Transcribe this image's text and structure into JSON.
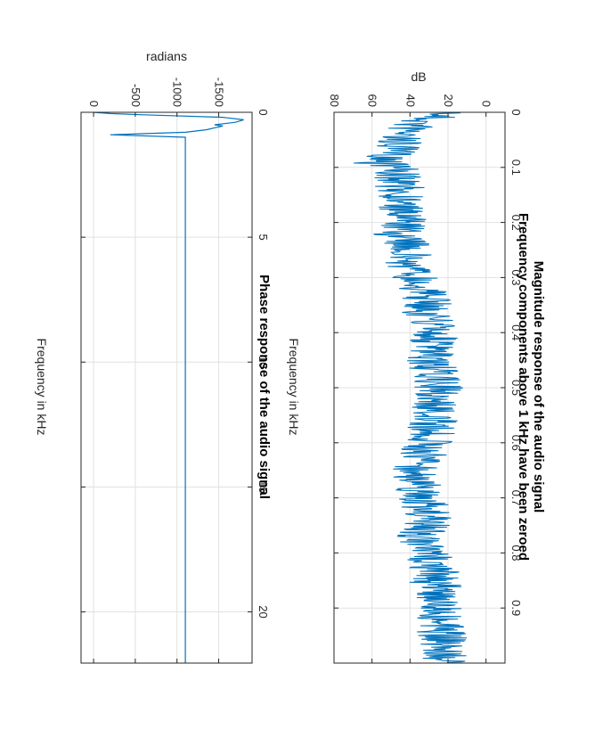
{
  "orientation": "rotated 90 degrees clockwise",
  "colors": {
    "line": "#0072bd",
    "grid": "#e1e1e1",
    "axis": "#262626",
    "background": "#ffffff"
  },
  "chart_data": [
    {
      "type": "line",
      "title": "Magnitude response of the audio signal",
      "subtitle": "Frequency components above 1 kHz have been zeroed",
      "xlabel": "Frequency in kHz",
      "ylabel": "dB",
      "xlim": [
        0,
        1
      ],
      "ylim": [
        -10,
        80
      ],
      "xticks": [
        0,
        0.1,
        0.2,
        0.3,
        0.4,
        0.5,
        0.6,
        0.7,
        0.8,
        0.9
      ],
      "xtick_labels": [
        "0",
        "0.1",
        "0.2",
        "0.3",
        "0.4",
        "0.5",
        "0.6",
        "0.7",
        "0.8",
        "0.9"
      ],
      "yticks": [
        0,
        20,
        40,
        60,
        80
      ],
      "ytick_labels": [
        "0",
        "20",
        "40",
        "60",
        "80"
      ],
      "grid": true,
      "series": [
        {
          "name": "magnitude",
          "description": "noisy spectrum, approximate envelope",
          "x": [
            0.0,
            0.02,
            0.05,
            0.08,
            0.09,
            0.1,
            0.12,
            0.15,
            0.18,
            0.2,
            0.22,
            0.25,
            0.28,
            0.3,
            0.33,
            0.36,
            0.4,
            0.44,
            0.47,
            0.5,
            0.53,
            0.56,
            0.6,
            0.63,
            0.66,
            0.69,
            0.72,
            0.75,
            0.78,
            0.8,
            0.83,
            0.86,
            0.9,
            0.93,
            0.96,
            1.0
          ],
          "y": [
            20,
            38,
            46,
            50,
            52,
            48,
            47,
            44,
            46,
            42,
            47,
            40,
            42,
            36,
            32,
            30,
            27,
            30,
            28,
            25,
            27,
            28,
            30,
            34,
            38,
            35,
            32,
            30,
            37,
            31,
            27,
            25,
            23,
            25,
            22,
            24
          ]
        }
      ]
    },
    {
      "type": "line",
      "title": "Phase response of the audio signal",
      "xlabel": "Frequency in kHz",
      "ylabel": "radians",
      "xlim": [
        0,
        22.05
      ],
      "ylim": [
        -1900,
        150
      ],
      "xticks": [
        0,
        5,
        10,
        15,
        20
      ],
      "xtick_labels": [
        "0",
        "5",
        "10",
        "15",
        "20"
      ],
      "yticks": [
        0,
        -500,
        -1000,
        -1500
      ],
      "ytick_labels": [
        "0",
        "-500",
        "-1000",
        "-1500"
      ],
      "grid": true,
      "series": [
        {
          "name": "phase",
          "x": [
            0,
            0.05,
            0.1,
            0.2,
            0.3,
            0.4,
            0.5,
            0.55,
            0.6,
            0.7,
            0.8,
            0.9,
            1.0,
            22.05
          ],
          "y": [
            0,
            -200,
            -600,
            -1550,
            -1800,
            -1700,
            -1450,
            -1550,
            -1480,
            -1350,
            -1100,
            -200,
            -1100,
            -1100
          ]
        }
      ]
    }
  ]
}
